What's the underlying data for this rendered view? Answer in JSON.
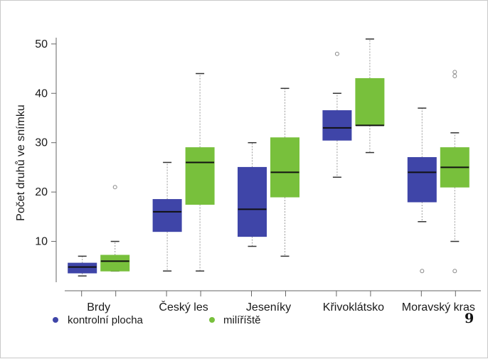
{
  "chart_data": {
    "type": "boxplot",
    "title": "",
    "xlabel": "",
    "ylabel": "Počet druhů ve snímku",
    "yticks": [
      10,
      20,
      30,
      40,
      50
    ],
    "ylim": [
      0,
      53
    ],
    "grid": false,
    "legend_position": "bottom",
    "categories": [
      "Brdy",
      "Český les",
      "Jeseníky",
      "Křivoklátsko",
      "Moravský kras"
    ],
    "series": [
      {
        "name": "kontrolní plocha",
        "color": "#3f45a8",
        "boxes": [
          {
            "whisker_low": 3,
            "q1": 3.6,
            "median": 4.8,
            "q3": 5.6,
            "whisker_high": 7,
            "outliers": []
          },
          {
            "whisker_low": 4,
            "q1": 12,
            "median": 16,
            "q3": 18.5,
            "whisker_high": 26,
            "outliers": []
          },
          {
            "whisker_low": 9,
            "q1": 11,
            "median": 16.5,
            "q3": 25,
            "whisker_high": 30,
            "outliers": []
          },
          {
            "whisker_low": 23,
            "q1": 30.5,
            "median": 33,
            "q3": 36.5,
            "whisker_high": 40,
            "outliers": [
              48
            ]
          },
          {
            "whisker_low": 14,
            "q1": 18,
            "median": 24,
            "q3": 27,
            "whisker_high": 37,
            "outliers": [
              4
            ]
          }
        ]
      },
      {
        "name": "milíříště",
        "color": "#78c03c",
        "boxes": [
          {
            "whisker_low": 4,
            "q1": 4,
            "median": 6,
            "q3": 7.2,
            "whisker_high": 10,
            "outliers": [
              21
            ]
          },
          {
            "whisker_low": 4,
            "q1": 17.5,
            "median": 26,
            "q3": 29,
            "whisker_high": 44,
            "outliers": []
          },
          {
            "whisker_low": 7,
            "q1": 19,
            "median": 24,
            "q3": 31,
            "whisker_high": 41,
            "outliers": []
          },
          {
            "whisker_low": 28,
            "q1": 33.5,
            "median": 33.5,
            "q3": 43,
            "whisker_high": 51,
            "outliers": []
          },
          {
            "whisker_low": 10,
            "q1": 21,
            "median": 25,
            "q3": 29,
            "whisker_high": 32,
            "outliers": [
              4,
              43.5,
              44.3
            ]
          }
        ]
      }
    ]
  },
  "page_number": "9"
}
